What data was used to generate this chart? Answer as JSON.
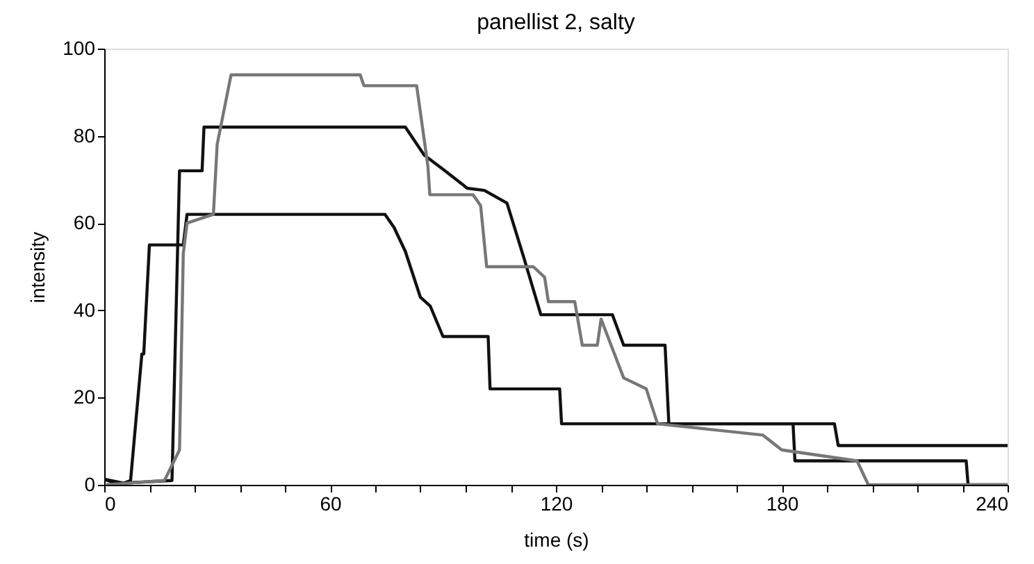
{
  "chart_data": {
    "type": "line",
    "title": "panellist 2, salty",
    "xlabel": "time (s)",
    "ylabel": "intensity",
    "xlim": [
      0,
      240
    ],
    "ylim": [
      0,
      100
    ],
    "xticks": [
      0,
      {
        "value": 12,
        "label": null
      },
      {
        "value": 24,
        "label": null
      },
      {
        "value": 36,
        "label": null
      },
      {
        "value": 48,
        "label": null
      },
      60,
      {
        "value": 72,
        "label": null
      },
      {
        "value": 84,
        "label": null
      },
      {
        "value": 96,
        "label": null
      },
      {
        "value": 108,
        "label": null
      },
      120,
      {
        "value": 132,
        "label": null
      },
      {
        "value": 144,
        "label": null
      },
      {
        "value": 156,
        "label": null
      },
      {
        "value": 168,
        "label": null
      },
      180,
      {
        "value": 192,
        "label": null
      },
      {
        "value": 204,
        "label": null
      },
      {
        "value": 216,
        "label": null
      },
      {
        "value": 228,
        "label": null
      },
      240
    ],
    "yticks": [
      0,
      20,
      40,
      60,
      80,
      100
    ],
    "grid": false,
    "legend": false,
    "marker": "none",
    "line_style": "solid",
    "series": [
      {
        "color": "#111111",
        "x": [
          0,
          4,
          7,
          10,
          10.5,
          12,
          21,
          22,
          74.6,
          77,
          80,
          84,
          86.6,
          90,
          102,
          102.5,
          121,
          121.5,
          183,
          183.5,
          229,
          229.5,
          240
        ],
        "values": [
          1.3,
          0,
          1,
          30,
          30,
          55,
          55,
          62,
          62,
          59,
          53.5,
          43,
          41,
          34,
          34,
          22,
          22,
          14,
          14,
          5.5,
          5.5,
          0,
          0
        ]
      },
      {
        "color": "#111111",
        "x": [
          0,
          5,
          18,
          20,
          26,
          26.5,
          80,
          85,
          90.5,
          95,
          96.4,
          101,
          107,
          111.5,
          116,
          135,
          138,
          149,
          150,
          194,
          195,
          240
        ],
        "values": [
          1.3,
          0.4,
          1,
          72,
          72,
          82,
          82,
          75.6,
          72,
          69,
          68,
          67.5,
          64.6,
          52,
          39,
          39,
          32,
          32,
          14,
          14,
          9,
          9
        ]
      },
      {
        "color": "#777777",
        "x": [
          0.5,
          16,
          20,
          21,
          22,
          29,
          30,
          33.7,
          68,
          69,
          83,
          86,
          86.5,
          98,
          100,
          101.6,
          114,
          117,
          118,
          125,
          127,
          131,
          132,
          138,
          144,
          147,
          175,
          180,
          200,
          203,
          240
        ],
        "values": [
          0,
          1,
          8,
          53,
          60,
          62,
          78,
          94,
          94,
          91.5,
          91.5,
          73,
          66.5,
          66.5,
          64,
          50,
          50,
          47.6,
          42,
          42,
          32,
          32,
          38,
          24.5,
          22,
          14,
          11.4,
          8,
          5.5,
          0,
          0
        ]
      }
    ]
  }
}
